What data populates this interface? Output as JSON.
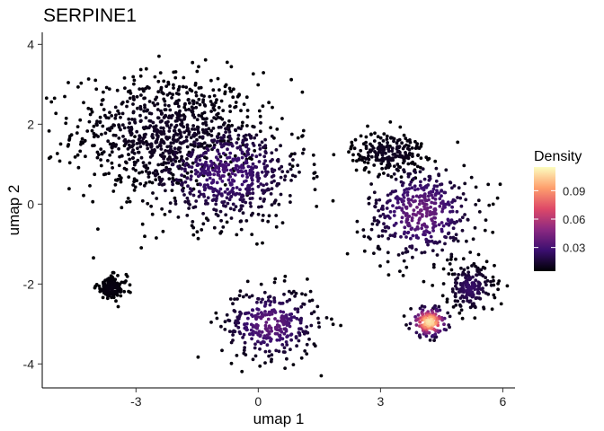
{
  "chart_data": {
    "type": "scatter",
    "title": "SERPINE1",
    "xlabel": "umap 1",
    "ylabel": "umap 2",
    "xlim": [
      -5.3,
      6.3
    ],
    "ylim": [
      -4.6,
      4.3
    ],
    "x_ticks": [
      -3,
      0,
      3,
      6
    ],
    "y_ticks": [
      -4,
      -2,
      0,
      2,
      4
    ],
    "x_tick_labels": [
      "-3",
      "0",
      "3",
      "6"
    ],
    "y_tick_labels": [
      "-4",
      "-2",
      "0",
      "2",
      "4"
    ],
    "grid": false,
    "point_density_clusters": [
      {
        "center": [
          -2.3,
          1.8
        ],
        "spread": [
          1.5,
          1.0
        ],
        "density": 0.012
      },
      {
        "center": [
          -0.8,
          0.8
        ],
        "spread": [
          1.3,
          0.9
        ],
        "density": 0.03
      },
      {
        "center": [
          0.3,
          -3.0
        ],
        "spread": [
          0.8,
          0.6
        ],
        "density": 0.038
      },
      {
        "center": [
          3.2,
          1.3
        ],
        "spread": [
          0.6,
          0.35
        ],
        "density": 0.012
      },
      {
        "center": [
          4.0,
          -0.2
        ],
        "spread": [
          0.9,
          0.8
        ],
        "density": 0.04
      },
      {
        "center": [
          5.2,
          -2.1
        ],
        "spread": [
          0.4,
          0.4
        ],
        "density": 0.025
      },
      {
        "center": [
          4.2,
          -2.95
        ],
        "spread": [
          0.3,
          0.25
        ],
        "density": 0.11
      },
      {
        "center": [
          -3.6,
          -2.1
        ],
        "spread": [
          0.25,
          0.2
        ],
        "density": 0.008
      }
    ],
    "colorbar": {
      "title": "Density",
      "min": 0.005,
      "max": 0.115,
      "ticks": [
        0.03,
        0.06,
        0.09
      ],
      "tick_labels": [
        "0.03",
        "0.06",
        "0.09"
      ],
      "colormap": "magma",
      "colors": [
        "#000004",
        "#3b0f70",
        "#8c2981",
        "#de4968",
        "#fe9f6d",
        "#fcfdbf"
      ]
    }
  }
}
